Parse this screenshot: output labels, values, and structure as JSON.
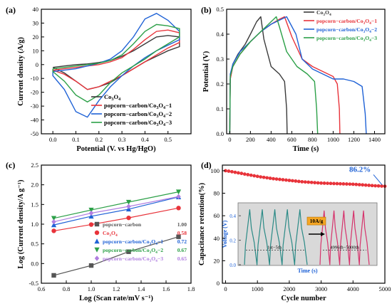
{
  "chart_data": [
    {
      "panel": "(a)",
      "type": "line",
      "xlabel": "Potential (V. vs Hg/HgO)",
      "ylabel": "Current density (A/g)",
      "xlim": [
        -0.05,
        0.6
      ],
      "ylim": [
        -50,
        40
      ],
      "xticks": [
        "0.0",
        "0.1",
        "0.2",
        "0.3",
        "0.4",
        "0.5"
      ],
      "yticks": [
        "-50",
        "-40",
        "-30",
        "-20",
        "-10",
        "0",
        "10",
        "20",
        "30",
        "40"
      ],
      "legend_position": "bottom-right",
      "series": [
        {
          "name": "Co3O4",
          "color": "#3a3a3a",
          "x": [
            0.0,
            0.05,
            0.1,
            0.15,
            0.2,
            0.25,
            0.3,
            0.35,
            0.4,
            0.45,
            0.5,
            0.55,
            0.55,
            0.5,
            0.45,
            0.4,
            0.35,
            0.3,
            0.25,
            0.2,
            0.15,
            0.1,
            0.05,
            0.0
          ],
          "y": [
            -2,
            -1,
            0,
            0.5,
            1.5,
            3,
            6,
            10,
            15,
            20,
            21,
            20,
            13,
            10,
            6,
            2,
            -3,
            -8,
            -13,
            -16,
            -18,
            -12,
            -6,
            -2
          ]
        },
        {
          "name": "popcorn−carbon/Co3O4−1",
          "color": "#e8333a",
          "x": [
            0.0,
            0.05,
            0.1,
            0.15,
            0.2,
            0.25,
            0.3,
            0.35,
            0.4,
            0.45,
            0.5,
            0.55,
            0.55,
            0.5,
            0.45,
            0.4,
            0.35,
            0.3,
            0.25,
            0.2,
            0.15,
            0.1,
            0.05,
            0.0
          ],
          "y": [
            -4,
            -3,
            -2,
            -1,
            0,
            2,
            5,
            11,
            18,
            24,
            25,
            23,
            16,
            12,
            7,
            2,
            -3,
            -8,
            -12,
            -16,
            -18,
            -12,
            -7,
            -4
          ]
        },
        {
          "name": "popcorn−carbon/Co3O4−2",
          "color": "#1f62d6",
          "x": [
            0.0,
            0.05,
            0.1,
            0.15,
            0.2,
            0.25,
            0.3,
            0.35,
            0.4,
            0.45,
            0.5,
            0.55,
            0.55,
            0.5,
            0.45,
            0.4,
            0.35,
            0.3,
            0.25,
            0.2,
            0.15,
            0.1,
            0.05,
            0.0
          ],
          "y": [
            -5,
            -4,
            -3,
            -1,
            1,
            4,
            10,
            20,
            33,
            37,
            32,
            24,
            18,
            14,
            10,
            5,
            -1,
            -8,
            -16,
            -26,
            -38,
            -34,
            -18,
            -8
          ]
        },
        {
          "name": "popcorn−carbon/Co3O4−3",
          "color": "#2ca048",
          "x": [
            0.0,
            0.05,
            0.1,
            0.15,
            0.2,
            0.25,
            0.3,
            0.35,
            0.4,
            0.45,
            0.5,
            0.55,
            0.55,
            0.5,
            0.45,
            0.4,
            0.35,
            0.3,
            0.25,
            0.2,
            0.15,
            0.1,
            0.05,
            0.0
          ],
          "y": [
            -3,
            -2,
            -1,
            0,
            1,
            3,
            7,
            15,
            24,
            29,
            28,
            26,
            20,
            15,
            10,
            4,
            -1,
            -6,
            -13,
            -22,
            -27,
            -22,
            -12,
            -5
          ]
        }
      ]
    },
    {
      "panel": "(b)",
      "type": "line",
      "xlabel": "Time (s)",
      "ylabel": "Potential (V)",
      "xlim": [
        -30,
        1500
      ],
      "ylim": [
        0,
        0.5
      ],
      "xticks": [
        "0",
        "200",
        "400",
        "600",
        "800",
        "1000",
        "1200",
        "1400"
      ],
      "yticks": [
        "0.0",
        "0.1",
        "0.2",
        "0.3",
        "0.4",
        "0.5"
      ],
      "legend_position": "top-right",
      "series": [
        {
          "name": "Co3O4",
          "color": "#3a3a3a",
          "x": [
            0,
            5,
            30,
            80,
            150,
            200,
            260,
            300,
            330,
            400,
            480,
            530,
            550,
            555
          ],
          "y": [
            0,
            0.22,
            0.28,
            0.32,
            0.36,
            0.4,
            0.45,
            0.47,
            0.38,
            0.27,
            0.24,
            0.21,
            0.1,
            0
          ]
        },
        {
          "name": "popcorn−carbon/Co3O4−1",
          "color": "#e8333a",
          "x": [
            0,
            5,
            30,
            100,
            200,
            300,
            400,
            480,
            530,
            600,
            700,
            800,
            900,
            1000,
            1040,
            1060,
            1065
          ],
          "y": [
            0,
            0.22,
            0.27,
            0.32,
            0.37,
            0.41,
            0.44,
            0.46,
            0.47,
            0.39,
            0.3,
            0.27,
            0.25,
            0.23,
            0.2,
            0.1,
            0
          ]
        },
        {
          "name": "popcorn−carbon/Co3O4−2",
          "color": "#1f62d6",
          "x": [
            0,
            5,
            30,
            100,
            200,
            300,
            400,
            500,
            550,
            640,
            700,
            800,
            900,
            1000,
            1100,
            1200,
            1280,
            1310,
            1320
          ],
          "y": [
            0,
            0.24,
            0.28,
            0.33,
            0.37,
            0.41,
            0.44,
            0.46,
            0.47,
            0.4,
            0.3,
            0.26,
            0.24,
            0.22,
            0.22,
            0.21,
            0.19,
            0.08,
            0
          ]
        },
        {
          "name": "popcorn−carbon/Co3O4−3",
          "color": "#2ca048",
          "x": [
            0,
            5,
            30,
            100,
            200,
            300,
            400,
            450,
            480,
            550,
            650,
            750,
            820,
            840,
            850
          ],
          "y": [
            0,
            0.23,
            0.27,
            0.32,
            0.37,
            0.41,
            0.45,
            0.47,
            0.43,
            0.33,
            0.27,
            0.24,
            0.21,
            0.1,
            0
          ]
        }
      ]
    },
    {
      "panel": "(c)",
      "type": "scatter",
      "xlabel": "Log (Scan rate/mV s⁻¹)",
      "ylabel": "Log (Current density/A g⁻¹)",
      "xlim": [
        0.6,
        1.8
      ],
      "ylim": [
        -0.5,
        2.5
      ],
      "xticks": [
        "0.6",
        "0.8",
        "1.0",
        "1.2",
        "1.4",
        "1.6",
        "1.8"
      ],
      "yticks": [
        "-0.5",
        "0.0",
        "0.5",
        "1.0",
        "1.5",
        "2.0",
        "2.5"
      ],
      "legend_position": "bottom-right",
      "x": [
        0.7,
        1.0,
        1.3,
        1.7
      ],
      "series": [
        {
          "name": "popcorn−carbon",
          "slope": "1.00",
          "marker": "square",
          "color": "#555555",
          "values": [
            -0.3,
            -0.05,
            0.3,
            0.68
          ]
        },
        {
          "name": "Co3O4",
          "slope": "0.58",
          "marker": "circle",
          "color": "#e8333a",
          "values": [
            0.83,
            0.99,
            1.16,
            1.41
          ]
        },
        {
          "name": "popcorn−carbon/Co3O4−1",
          "slope": "0.72",
          "marker": "triangle-up",
          "color": "#1f62d6",
          "values": [
            0.98,
            1.2,
            1.38,
            1.69
          ]
        },
        {
          "name": "popcorn−carbon/Co3O4−2",
          "slope": "0.67",
          "marker": "triangle-down",
          "color": "#2ca048",
          "values": [
            1.15,
            1.36,
            1.56,
            1.82
          ]
        },
        {
          "name": "popcorn−carbon/Co3O4−3",
          "slope": "0.65",
          "marker": "diamond",
          "color": "#b07ee0",
          "values": [
            1.06,
            1.28,
            1.45,
            1.7
          ]
        }
      ]
    },
    {
      "panel": "(d)",
      "type": "scatter",
      "xlabel": "Cycle number",
      "ylabel": "Capacitance retention(%)",
      "xlim": [
        -100,
        5000
      ],
      "ylim": [
        0,
        105
      ],
      "xticks": [
        "0",
        "1000",
        "2000",
        "3000",
        "4000",
        "5000"
      ],
      "yticks": [
        "0",
        "20",
        "40",
        "60",
        "80",
        "100"
      ],
      "annotation": "86.2%",
      "color": "#e8333a",
      "x": [
        0,
        100,
        200,
        300,
        400,
        500,
        600,
        700,
        800,
        900,
        1000,
        1100,
        1200,
        1300,
        1400,
        1500,
        1600,
        1700,
        1800,
        1900,
        2000,
        2100,
        2200,
        2300,
        2400,
        2500,
        2600,
        2700,
        2800,
        2900,
        3000,
        3100,
        3200,
        3300,
        3400,
        3500,
        3600,
        3700,
        3800,
        3900,
        4000,
        4100,
        4200,
        4300,
        4400,
        4500,
        4600,
        4700,
        4800,
        4900,
        5000
      ],
      "values": [
        100,
        99.6,
        99.1,
        98.6,
        98.1,
        97.6,
        97.0,
        96.5,
        96.0,
        95.5,
        95.0,
        94.5,
        94.1,
        93.7,
        93.3,
        92.9,
        92.6,
        92.3,
        92.0,
        91.7,
        91.4,
        91.1,
        90.8,
        90.5,
        90.2,
        90.0,
        89.8,
        89.6,
        89.4,
        89.2,
        89.0,
        88.9,
        88.8,
        88.7,
        88.6,
        88.5,
        88.4,
        88.3,
        88.2,
        88.1,
        88.0,
        87.8,
        87.6,
        87.4,
        87.2,
        87.0,
        86.8,
        86.6,
        86.5,
        86.35,
        86.2
      ],
      "inset": {
        "ylabel": "Voltage (V)",
        "xlabel": "Time (s)",
        "yticks": [
          "0.0",
          "0.2",
          "0.4"
        ],
        "ylim": [
          0,
          0.5
        ],
        "label_first": "1st−5th",
        "label_last": "4996th−5000th",
        "current_label": "10A/g",
        "first_color": "#2a8a86",
        "last_color": "#d6336c",
        "first_peak": 0.45,
        "last_peak": 0.44,
        "cycles_each": 5
      }
    }
  ]
}
